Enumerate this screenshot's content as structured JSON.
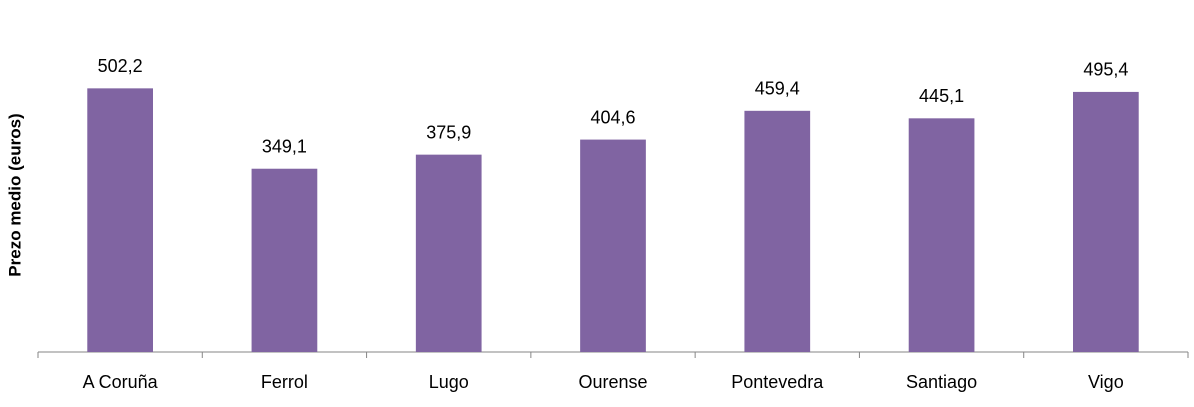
{
  "chart_data": {
    "type": "bar",
    "y_label": "Prezo medio (euros)",
    "categories": [
      "A Coruña",
      "Ferrol",
      "Lugo",
      "Ourense",
      "Pontevedra",
      "Santiago",
      "Vigo"
    ],
    "values": [
      502.2,
      349.1,
      375.9,
      404.6,
      459.4,
      445.1,
      495.4
    ],
    "value_labels": [
      "502,2",
      "349,1",
      "375,9",
      "404,6",
      "459,4",
      "445,1",
      "495,4"
    ],
    "color": "#8064a2",
    "ylim": [
      0,
      600
    ]
  }
}
